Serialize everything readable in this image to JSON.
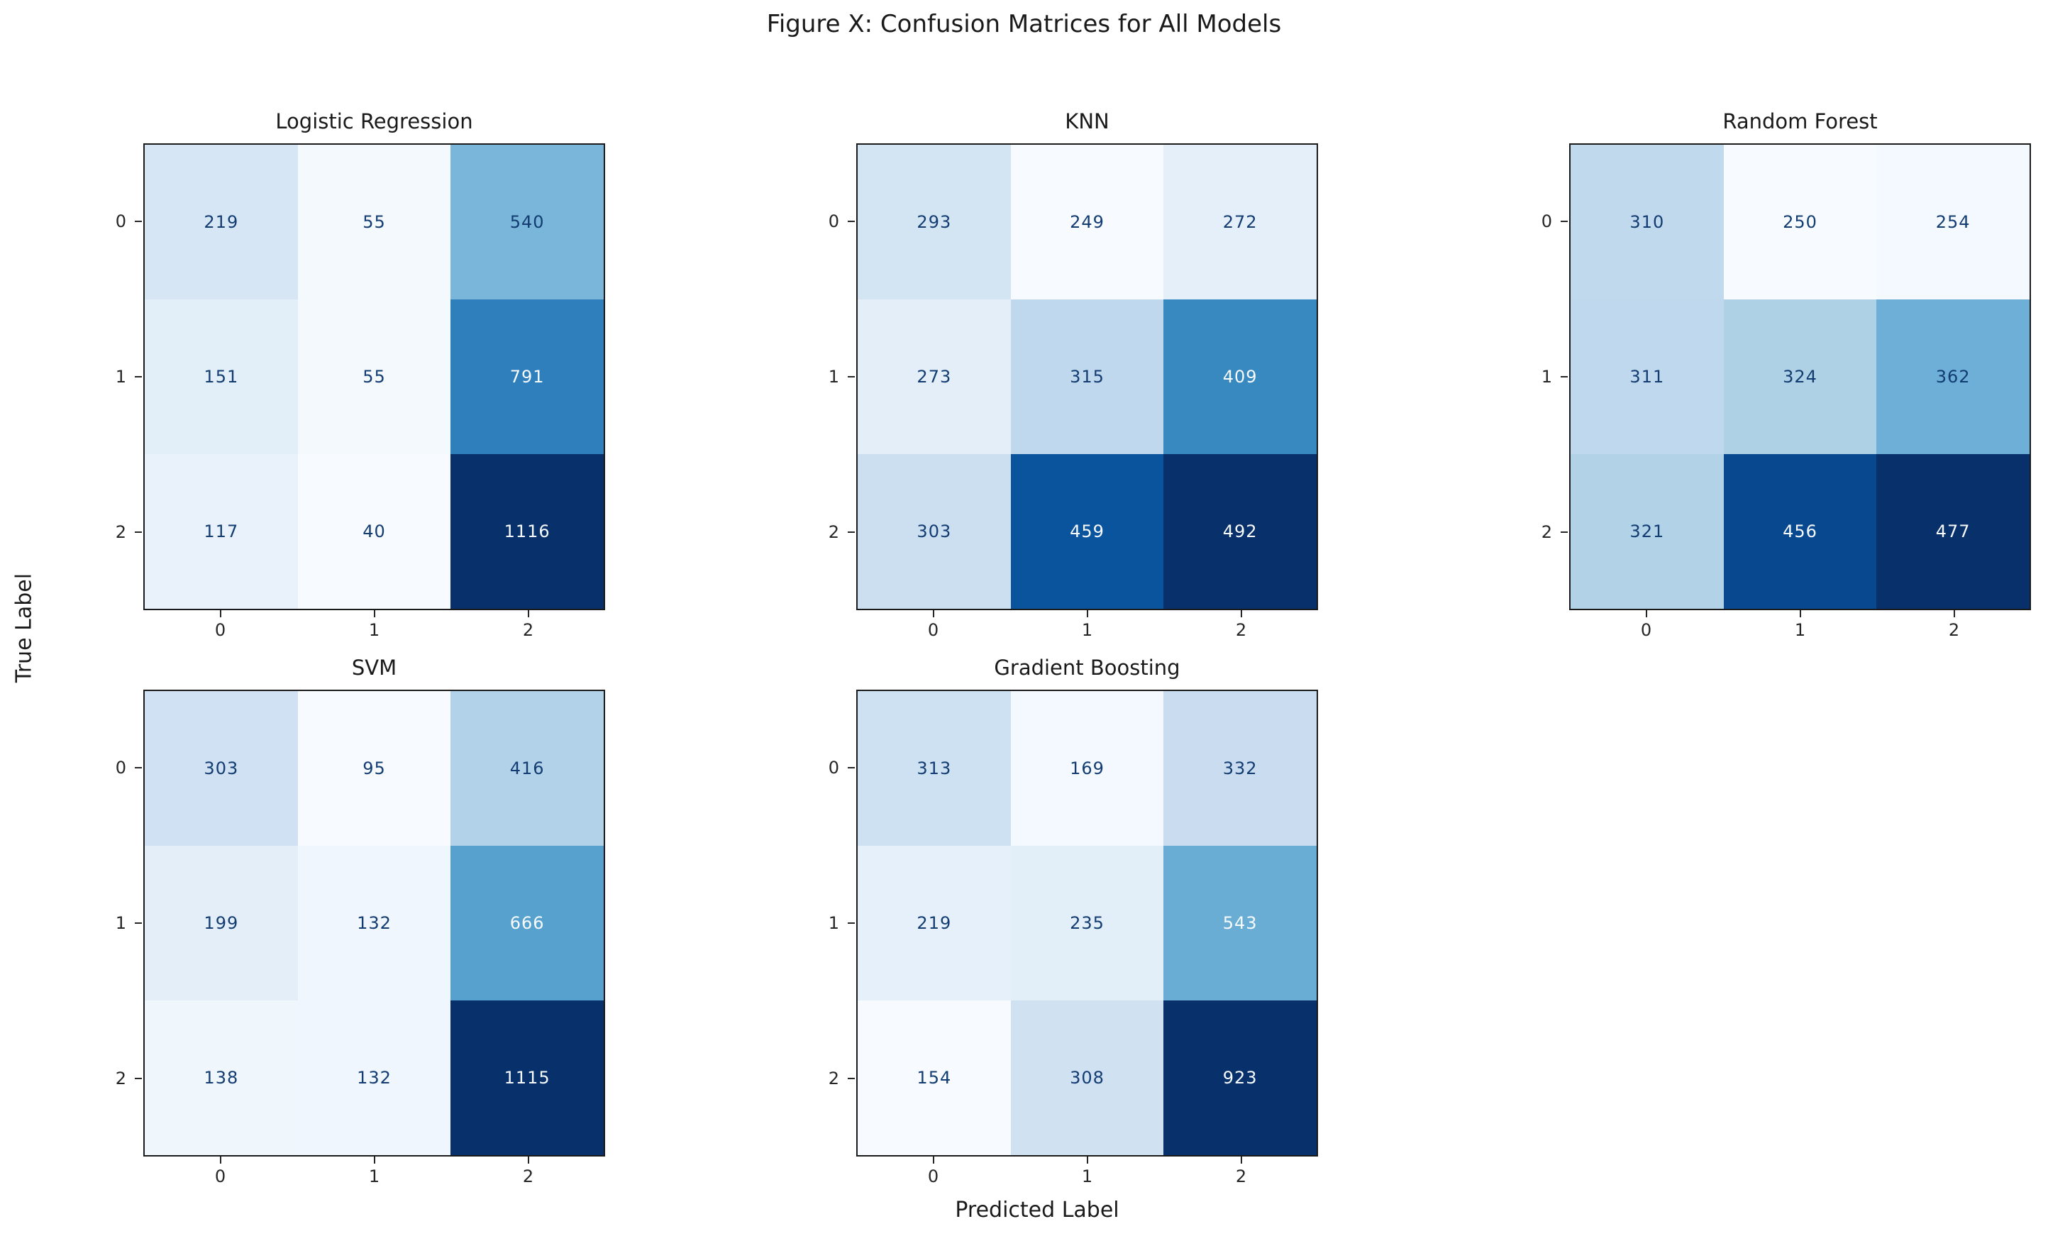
{
  "figure": {
    "title": "Figure X: Confusion Matrices for All Models",
    "xlabel": "Predicted Label",
    "ylabel": "True Label"
  },
  "chart_data": {
    "type": "heatmap",
    "title": "Figure X: Confusion Matrices for All Models",
    "xlabel": "Predicted Label",
    "ylabel": "True Label",
    "layout": "2 rows x 3 cols, last slot empty, no colorbars",
    "colormap": "Blues",
    "normalization": "per-matrix min..max",
    "class_labels": [
      "0",
      "1",
      "2"
    ],
    "matrices": [
      {
        "name": "Logistic Regression",
        "rows": [
          [
            219,
            55,
            540
          ],
          [
            151,
            55,
            791
          ],
          [
            117,
            40,
            1116
          ]
        ]
      },
      {
        "name": "KNN",
        "rows": [
          [
            293,
            249,
            272
          ],
          [
            273,
            315,
            409
          ],
          [
            303,
            459,
            492
          ]
        ]
      },
      {
        "name": "Random Forest",
        "rows": [
          [
            310,
            250,
            254
          ],
          [
            311,
            324,
            362
          ],
          [
            321,
            456,
            477
          ]
        ]
      },
      {
        "name": "SVM",
        "rows": [
          [
            303,
            95,
            416
          ],
          [
            199,
            132,
            666
          ],
          [
            138,
            132,
            1115
          ]
        ]
      },
      {
        "name": "Gradient Boosting",
        "rows": [
          [
            313,
            169,
            332
          ],
          [
            219,
            235,
            543
          ],
          [
            154,
            308,
            923
          ]
        ]
      }
    ],
    "colormap_stops": [
      "#f7fbff",
      "#deebf7",
      "#c6dbef",
      "#9ecae1",
      "#6baed6",
      "#4292c6",
      "#2171b5",
      "#08519c",
      "#08306b"
    ],
    "colors": {
      "value_text_dark": "#123c72",
      "value_text_light": "#f7fbff",
      "spine": "#1a1a1a",
      "tick": "#262626",
      "background": "#ffffff"
    }
  }
}
